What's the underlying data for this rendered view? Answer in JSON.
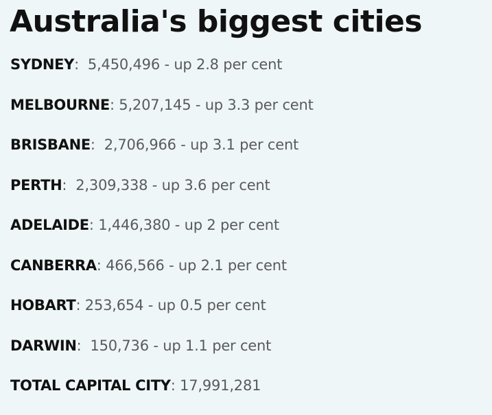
{
  "header": {
    "title": "Australia's biggest cities"
  },
  "items": [
    {
      "name": "SYDNEY",
      "detail": ":  5,450,496 - up 2.8 per cent"
    },
    {
      "name": "MELBOURNE",
      "detail": ": 5,207,145 - up 3.3 per cent"
    },
    {
      "name": "BRISBANE",
      "detail": ":  2,706,966 - up 3.1 per cent"
    },
    {
      "name": "PERTH",
      "detail": ":  2,309,338 - up 3.6 per cent"
    },
    {
      "name": "ADELAIDE",
      "detail": ": 1,446,380 - up 2 per cent"
    },
    {
      "name": "CANBERRA",
      "detail": ": 466,566 - up 2.1 per cent"
    },
    {
      "name": "HOBART",
      "detail": ": 253,654 - up 0.5 per cent"
    },
    {
      "name": "DARWIN",
      "detail": ":  150,736 - up 1.1 per cent"
    },
    {
      "name": "TOTAL CAPITAL CITY",
      "detail": ": 17,991,281"
    }
  ]
}
